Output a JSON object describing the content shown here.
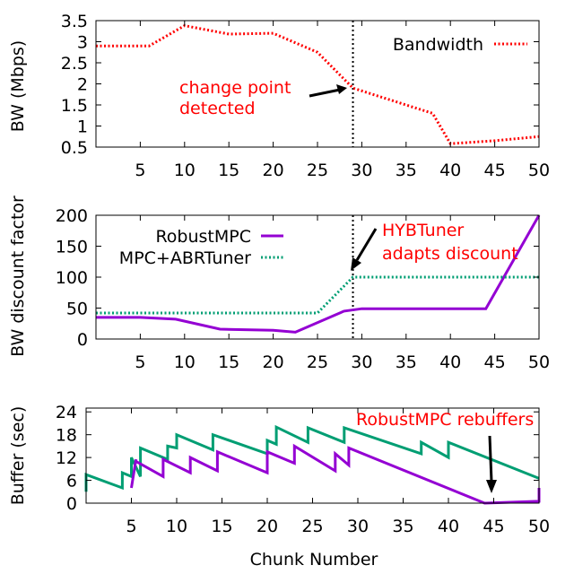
{
  "chart_data": [
    {
      "type": "line",
      "ylabel": "BW (Mbps)",
      "xlabel": "",
      "xlim": [
        0,
        50
      ],
      "ylim": [
        0.5,
        3.5
      ],
      "xticks": [
        "5",
        "10",
        "15",
        "20",
        "25",
        "30",
        "35",
        "40",
        "45",
        "50"
      ],
      "yticks": [
        "0.5",
        "1",
        "1.5",
        "2",
        "2.5",
        "3",
        "3.5"
      ],
      "legend_position": "top-right",
      "series": [
        {
          "name": "Bandwidth",
          "color": "#ff0000",
          "dash": "dotted",
          "x": [
            0,
            6,
            10,
            15,
            20,
            25,
            29,
            38,
            40,
            45,
            50
          ],
          "y": [
            2.9,
            2.9,
            3.38,
            3.18,
            3.2,
            2.75,
            1.9,
            1.3,
            0.58,
            0.65,
            0.75
          ]
        }
      ],
      "vline_x": 29,
      "annotation": {
        "lines": [
          "change point",
          "detected"
        ],
        "color": "#ff0000",
        "arrow_target": [
          29,
          1.9
        ]
      }
    },
    {
      "type": "line",
      "ylabel": "BW discount factor",
      "xlabel": "",
      "xlim": [
        0,
        50
      ],
      "ylim": [
        0,
        200
      ],
      "xticks": [
        "5",
        "10",
        "15",
        "20",
        "25",
        "30",
        "35",
        "40",
        "45",
        "50"
      ],
      "yticks": [
        "0",
        "50",
        "100",
        "150",
        "200"
      ],
      "legend_position": "top-left",
      "series": [
        {
          "name": "RobustMPC",
          "color": "#9400d3",
          "dash": "solid",
          "x": [
            0,
            5,
            9,
            14,
            20,
            22.5,
            28,
            30,
            44,
            50
          ],
          "y": [
            35,
            35,
            32,
            16,
            14,
            11,
            45,
            49,
            49,
            200
          ]
        },
        {
          "name": "MPC+ABRTuner",
          "color": "#009e73",
          "dash": "dotted",
          "x": [
            0,
            25,
            29,
            30,
            50
          ],
          "y": [
            42,
            42,
            100,
            100,
            100
          ]
        }
      ],
      "vline_x": 29,
      "annotation": {
        "lines": [
          "HYBTuner",
          "adapts discount"
        ],
        "color": "#ff0000",
        "arrow_target": [
          29,
          100
        ]
      }
    },
    {
      "type": "line",
      "ylabel": "Buffer (sec)",
      "xlabel": "Chunk Number",
      "xlim": [
        0,
        50
      ],
      "ylim": [
        0,
        25
      ],
      "xticks": [
        "5",
        "10",
        "15",
        "20",
        "25",
        "30",
        "35",
        "40",
        "45",
        "50"
      ],
      "yticks": [
        "0",
        "6",
        "12",
        "18",
        "24"
      ],
      "series": [
        {
          "name": "MPC+ABRTuner",
          "color": "#009e73",
          "dash": "solid",
          "x": [
            0,
            0,
            4,
            4,
            5,
            5,
            6,
            6,
            9,
            9,
            10,
            10,
            14,
            14,
            20,
            20,
            21,
            21,
            24.5,
            24.5,
            28.5,
            28.5,
            37,
            37,
            40,
            40,
            50
          ],
          "y": [
            3,
            7.5,
            4,
            8,
            7,
            12,
            7,
            14.5,
            11.5,
            15,
            14.5,
            18,
            14,
            18,
            13,
            16.5,
            15.5,
            20,
            16,
            19.8,
            16,
            19.8,
            13,
            16,
            12,
            16,
            6.5
          ]
        },
        {
          "name": "RobustMPC",
          "color": "#9400d3",
          "dash": "solid",
          "x": [
            5,
            5.5,
            5.5,
            8.5,
            8.5,
            11.5,
            11.5,
            14.5,
            14.5,
            20,
            20,
            23,
            23,
            27.5,
            27.5,
            29,
            29,
            44,
            44,
            50,
            50
          ],
          "y": [
            4,
            11.5,
            11,
            7,
            11.5,
            8,
            12,
            8.5,
            13.5,
            8,
            13.5,
            10.5,
            15,
            8.5,
            13,
            10,
            14.5,
            0,
            0,
            0.5,
            4
          ]
        }
      ],
      "annotation": {
        "lines": [
          "RobustMPC rebuffers"
        ],
        "color": "#ff0000",
        "arrow_target": [
          44.5,
          0
        ]
      }
    }
  ]
}
